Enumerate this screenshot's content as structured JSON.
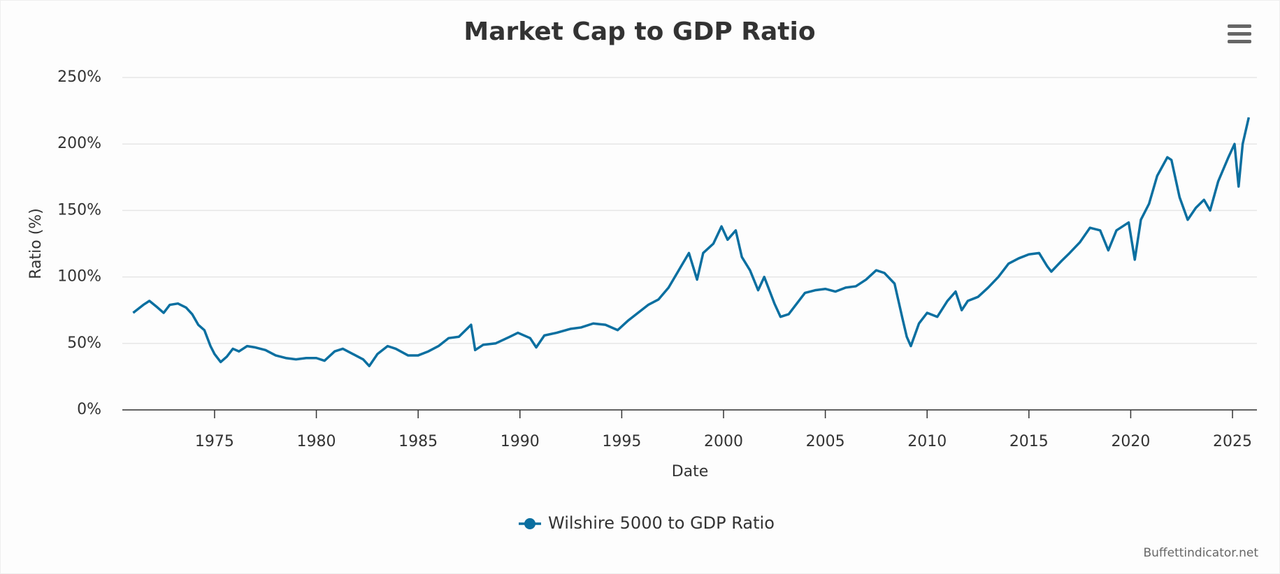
{
  "chart_data": {
    "type": "line",
    "title": "Market Cap to GDP Ratio",
    "x_label": "Date",
    "y_label": "Ratio (%)",
    "credit": "Buffettindicator.net",
    "x": [
      1971.0,
      1971.5,
      1971.8,
      1972.2,
      1972.5,
      1972.8,
      1973.2,
      1973.6,
      1973.9,
      1974.2,
      1974.5,
      1974.8,
      1975.0,
      1975.3,
      1975.6,
      1975.9,
      1976.2,
      1976.6,
      1977.0,
      1977.5,
      1978.0,
      1978.5,
      1979.0,
      1979.5,
      1980.0,
      1980.4,
      1980.9,
      1981.3,
      1981.8,
      1982.3,
      1982.6,
      1983.0,
      1983.5,
      1983.9,
      1984.5,
      1985.0,
      1985.5,
      1986.0,
      1986.5,
      1987.0,
      1987.6,
      1987.8,
      1988.2,
      1988.8,
      1989.5,
      1989.9,
      1990.5,
      1990.8,
      1991.2,
      1991.8,
      1992.5,
      1993.0,
      1993.6,
      1994.2,
      1994.8,
      1995.3,
      1995.8,
      1996.3,
      1996.8,
      1997.3,
      1997.8,
      1998.3,
      1998.7,
      1999.0,
      1999.5,
      1999.9,
      2000.2,
      2000.6,
      2000.9,
      2001.3,
      2001.7,
      2002.0,
      2002.5,
      2002.8,
      2003.2,
      2003.6,
      2004.0,
      2004.5,
      2005.0,
      2005.5,
      2006.0,
      2006.5,
      2007.0,
      2007.5,
      2007.9,
      2008.4,
      2008.8,
      2009.0,
      2009.2,
      2009.6,
      2010.0,
      2010.5,
      2011.0,
      2011.4,
      2011.7,
      2012.0,
      2012.5,
      2013.0,
      2013.5,
      2014.0,
      2014.5,
      2015.0,
      2015.5,
      2015.9,
      2016.1,
      2016.6,
      2017.0,
      2017.5,
      2018.0,
      2018.5,
      2018.9,
      2019.3,
      2019.9,
      2020.2,
      2020.5,
      2020.9,
      2021.3,
      2021.8,
      2022.0,
      2022.4,
      2022.8,
      2023.2,
      2023.6,
      2023.9,
      2024.3,
      2024.8,
      2025.1,
      2025.3,
      2025.5,
      2025.8
    ],
    "series": [
      {
        "name": "Wilshire 5000 to GDP Ratio",
        "color": "#0b6fa0",
        "values": [
          73,
          79,
          82,
          77,
          73,
          79,
          80,
          77,
          72,
          64,
          60,
          48,
          42,
          36,
          40,
          46,
          44,
          48,
          47,
          45,
          41,
          39,
          38,
          39,
          39,
          37,
          44,
          46,
          42,
          38,
          33,
          42,
          48,
          46,
          41,
          41,
          44,
          48,
          54,
          55,
          64,
          45,
          49,
          50,
          55,
          58,
          54,
          47,
          56,
          58,
          61,
          62,
          65,
          64,
          60,
          67,
          73,
          79,
          83,
          92,
          105,
          118,
          98,
          118,
          125,
          138,
          128,
          135,
          115,
          105,
          90,
          100,
          80,
          70,
          72,
          80,
          88,
          90,
          91,
          89,
          92,
          93,
          98,
          105,
          103,
          95,
          68,
          55,
          48,
          65,
          73,
          70,
          82,
          89,
          75,
          82,
          85,
          92,
          100,
          110,
          114,
          117,
          118,
          108,
          104,
          112,
          118,
          126,
          137,
          135,
          120,
          135,
          141,
          113,
          143,
          155,
          176,
          190,
          188,
          160,
          143,
          152,
          158,
          150,
          172,
          190,
          200,
          168,
          200,
          220
        ]
      }
    ],
    "xlim": [
      1970.47,
      2026.2
    ],
    "xticks": [
      1975,
      1980,
      1985,
      1990,
      1995,
      2000,
      2005,
      2010,
      2015,
      2020,
      2025
    ],
    "ylim": [
      0,
      250
    ],
    "yticks": [
      {
        "value": 0,
        "label": "0%"
      },
      {
        "value": 50,
        "label": "50%"
      },
      {
        "value": 100,
        "label": "100%"
      },
      {
        "value": 150,
        "label": "150%"
      },
      {
        "value": 200,
        "label": "200%"
      },
      {
        "value": 250,
        "label": "250%"
      }
    ],
    "grid": true
  }
}
